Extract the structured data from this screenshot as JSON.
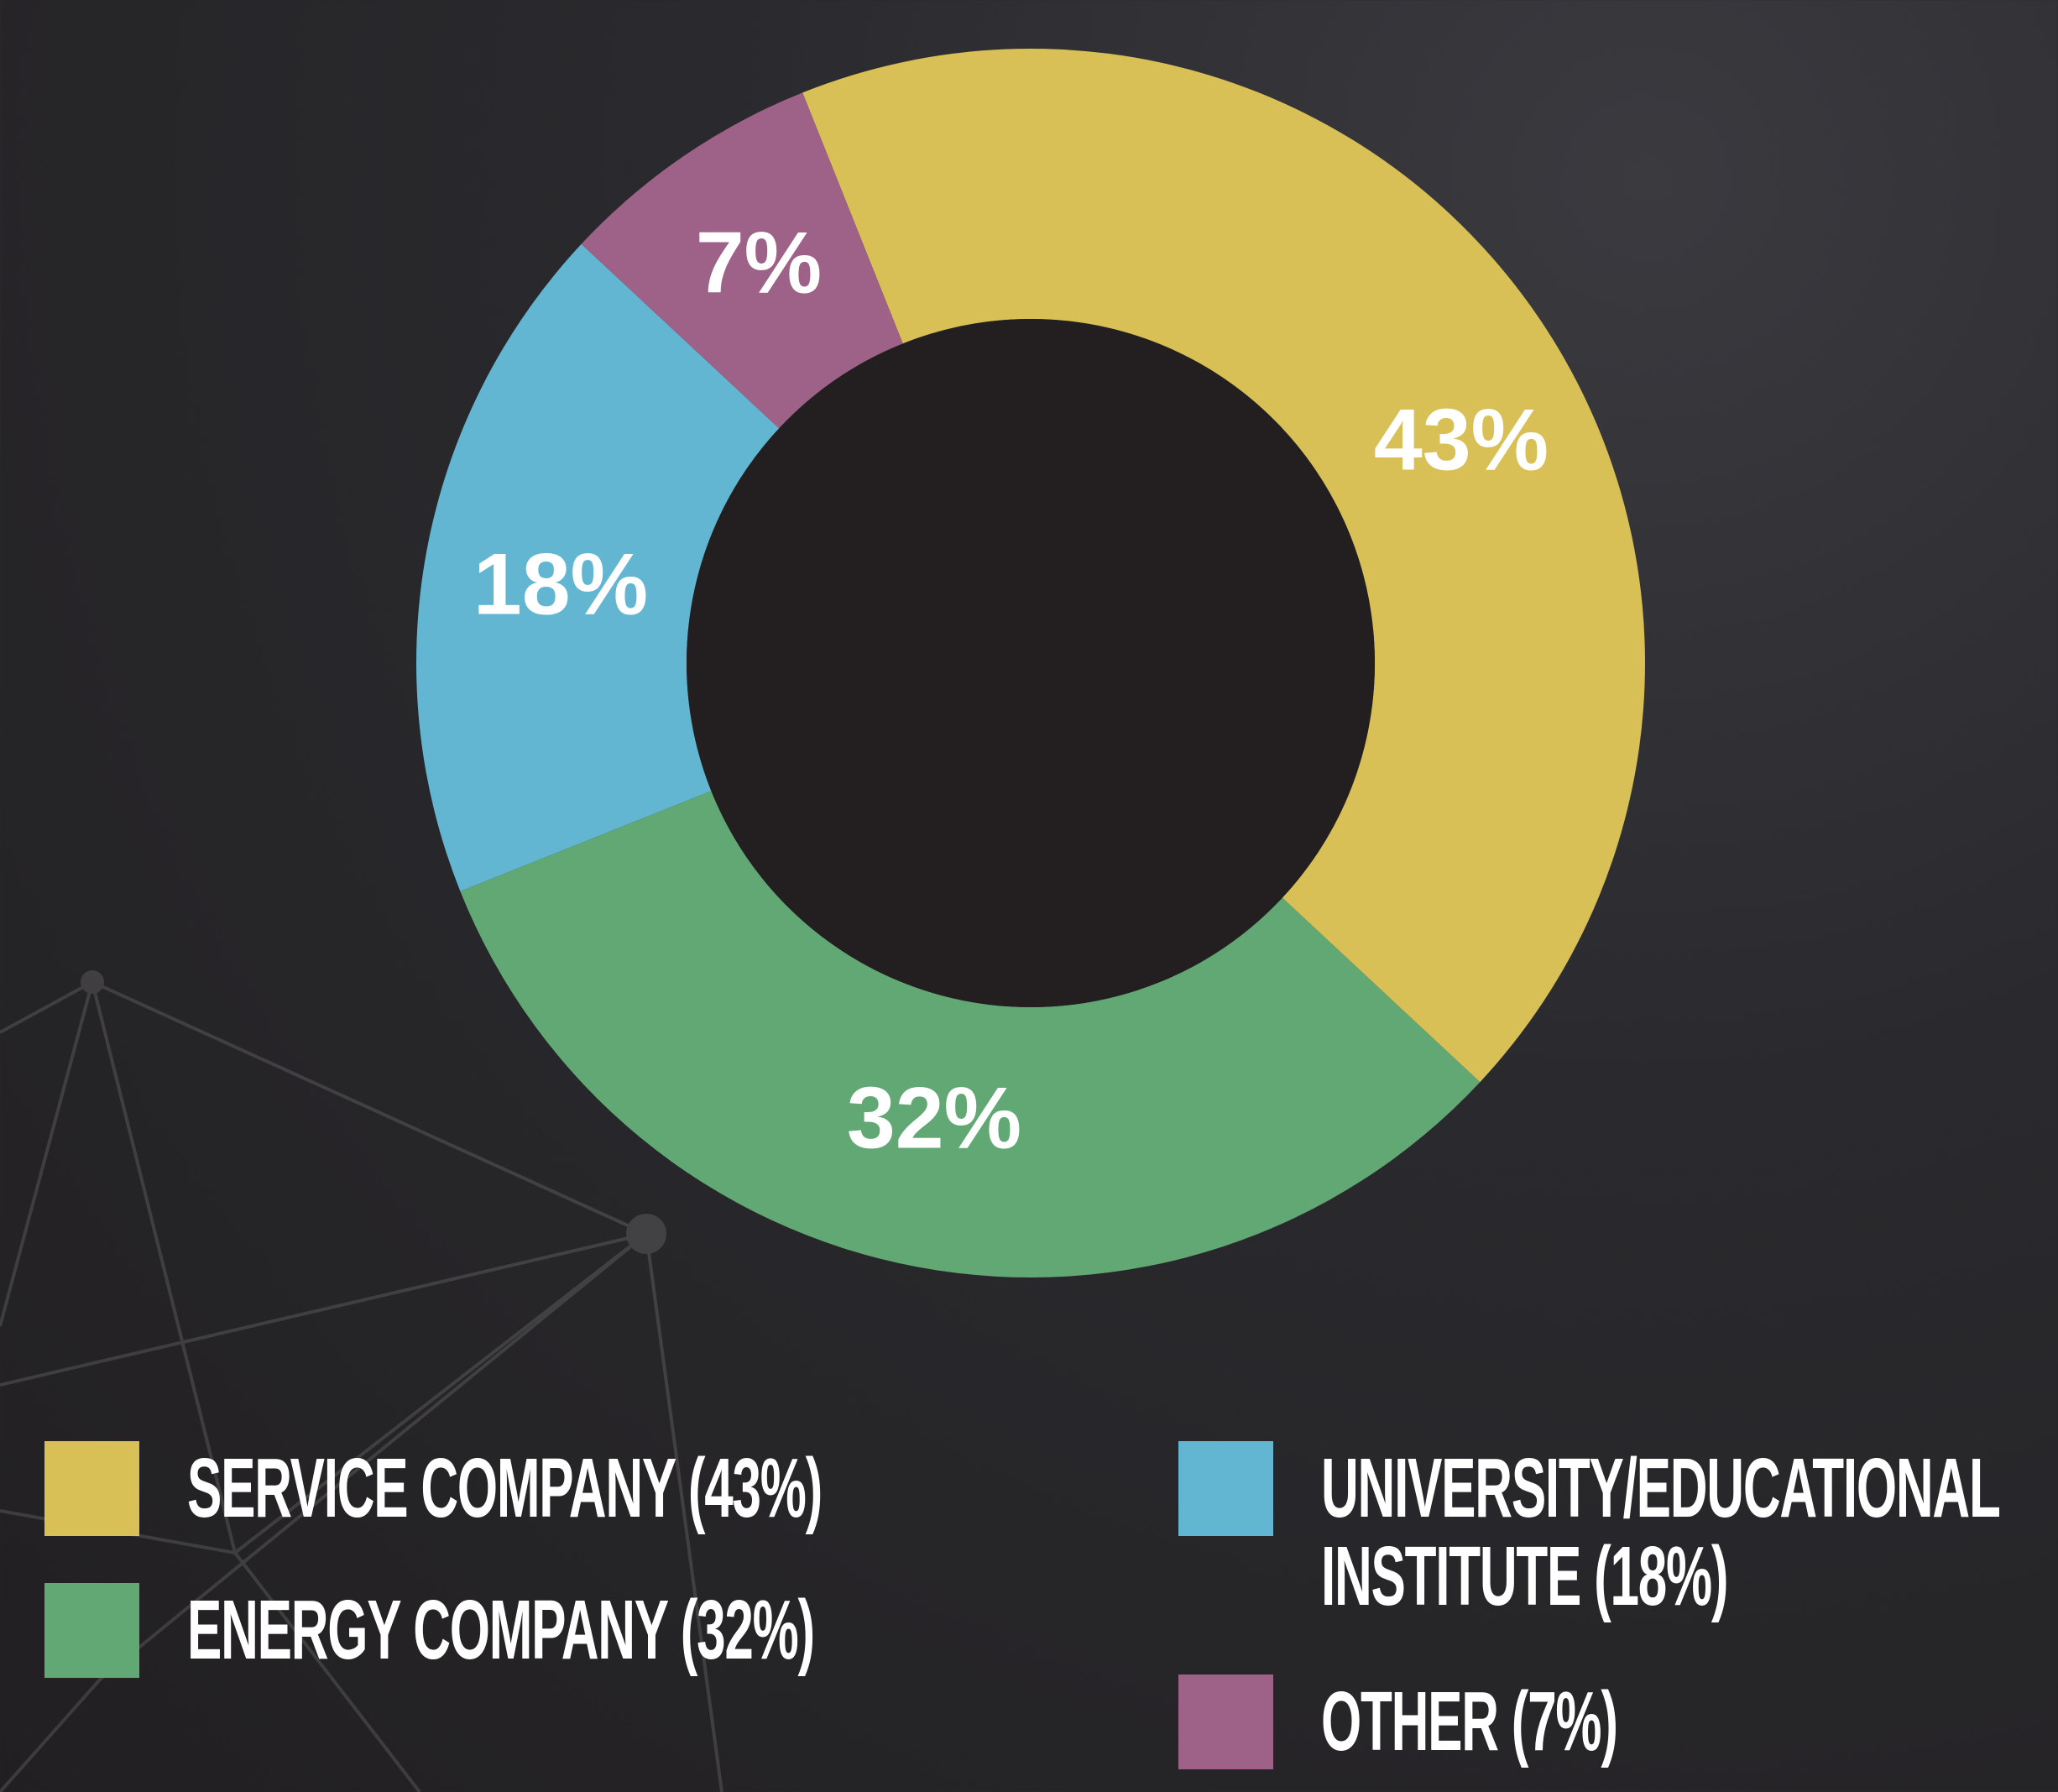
{
  "chart_data": {
    "type": "donut",
    "categories": [
      "SERVICE COMPANY (43%)",
      "ENERGY COMPANY (32%)",
      "UNIVERSITY/EDUCATIONAL INSTITUTE (18%)",
      "OTHER (7%)"
    ],
    "values": [
      43,
      32,
      18,
      7
    ],
    "value_labels": [
      "43%",
      "32%",
      "18%",
      "7%"
    ],
    "colors": [
      "#d8bf56",
      "#61a874",
      "#62b6d2",
      "#9e6188"
    ]
  }
}
